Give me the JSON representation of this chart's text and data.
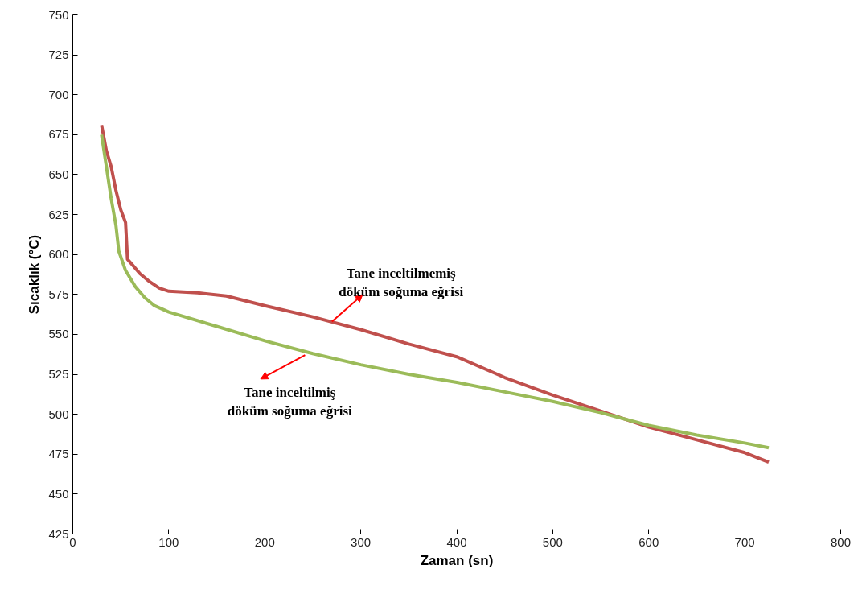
{
  "chart_data": {
    "type": "line",
    "xlabel": "Zaman (sn)",
    "ylabel": "Sıcaklık (°C)",
    "xlim": [
      0,
      800
    ],
    "xticks": [
      0,
      100,
      200,
      300,
      400,
      500,
      600,
      700,
      800
    ],
    "ylim": [
      425,
      750
    ],
    "yticks": [
      425,
      450,
      475,
      500,
      525,
      550,
      575,
      600,
      625,
      650,
      675,
      700,
      725,
      750
    ],
    "grid": false,
    "marker": "none",
    "line_style": "solid",
    "series": [
      {
        "color": "#c0504d",
        "x": [
          30,
          35,
          40,
          45,
          50,
          55,
          57,
          60,
          70,
          80,
          90,
          100,
          130,
          160,
          200,
          250,
          300,
          350,
          400,
          450,
          500,
          550,
          600,
          650,
          700,
          725
        ],
        "values": [
          681,
          665,
          655,
          640,
          628,
          620,
          597,
          595,
          588,
          583,
          579,
          577,
          576,
          574,
          568,
          561,
          553,
          544,
          536,
          523,
          512,
          502,
          492,
          484,
          476,
          470
        ]
      },
      {
        "color": "#9bbb59",
        "x": [
          30,
          35,
          40,
          45,
          48,
          55,
          65,
          75,
          85,
          100,
          150,
          200,
          250,
          300,
          350,
          400,
          450,
          500,
          550,
          600,
          650,
          700,
          725
        ],
        "values": [
          675,
          655,
          635,
          618,
          602,
          590,
          580,
          573,
          568,
          564,
          555,
          546,
          538,
          531,
          525,
          520,
          514,
          508,
          501,
          493,
          487,
          482,
          479
        ]
      }
    ],
    "annotations": [
      {
        "text": "Tane inceltilmemiş\ndöküm soğuma eğrisi",
        "x": 270,
        "y": 558
      },
      {
        "text": "Tane inceltilmiş\ndöküm soğuma eğrisi",
        "x": 242,
        "y": 537
      }
    ]
  }
}
